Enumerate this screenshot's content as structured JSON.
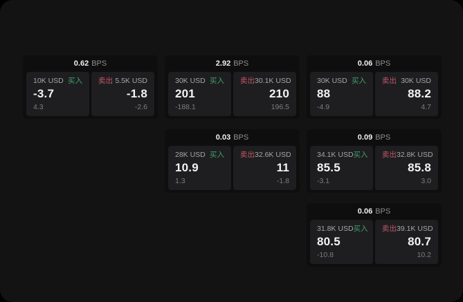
{
  "page": {
    "bps_unit": "BPS",
    "buy_label": "买入",
    "sell_label": "卖出"
  },
  "colors": {
    "page_background": "#131313",
    "card_background": "#0e0e0e",
    "panel_background": "#1e1e20",
    "buy_green": "#41a169",
    "sell_red": "#c25668",
    "primary_text": "#f3f3f3",
    "muted_text": "#8f8f8f"
  },
  "cards": [
    {
      "bps": "0.62",
      "buy": {
        "size": "10K USD",
        "value": "-3.7",
        "sub": "4.3"
      },
      "sell": {
        "size": "5.5K USD",
        "value": "-1.8",
        "sub": "-2.6"
      }
    },
    {
      "bps": "2.92",
      "buy": {
        "size": "30K USD",
        "value": "201",
        "sub": "-188.1"
      },
      "sell": {
        "size": "30.1K USD",
        "value": "210",
        "sub": "196.5"
      }
    },
    {
      "bps": "0.06",
      "buy": {
        "size": "30K USD",
        "value": "88",
        "sub": "-4.9"
      },
      "sell": {
        "size": "30K USD",
        "value": "88.2",
        "sub": "4.7"
      }
    },
    {
      "bps": "0.03",
      "buy": {
        "size": "28K USD",
        "value": "10.9",
        "sub": "1.3"
      },
      "sell": {
        "size": "32.6K USD",
        "value": "11",
        "sub": "-1.8"
      }
    },
    {
      "bps": "0.09",
      "buy": {
        "size": "34.1K USD",
        "value": "85.5",
        "sub": "-3.1"
      },
      "sell": {
        "size": "32.8K USD",
        "value": "85.8",
        "sub": "3.0"
      }
    },
    {
      "bps": "0.06",
      "buy": {
        "size": "31.8K USD",
        "value": "80.5",
        "sub": "-10.8"
      },
      "sell": {
        "size": "39.1K USD",
        "value": "80.7",
        "sub": "10.2"
      }
    }
  ]
}
